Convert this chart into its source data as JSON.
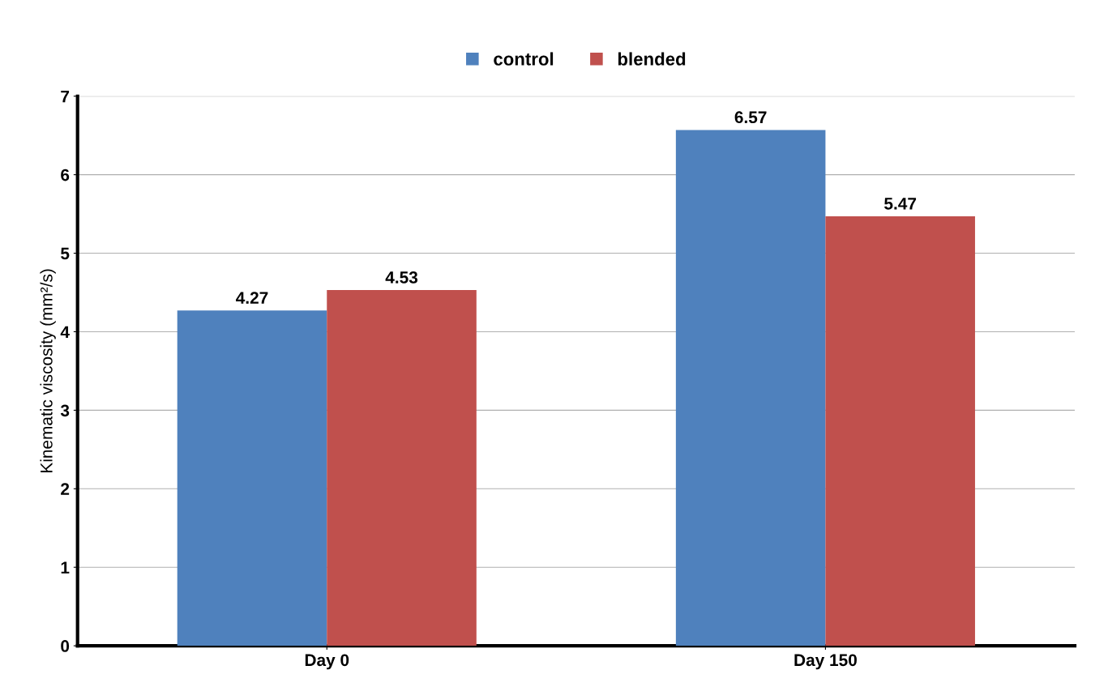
{
  "chart_data": {
    "type": "bar",
    "ylabel": "Kinematic viscosity (mm²/s)",
    "categories": [
      "Day 0",
      "Day 150"
    ],
    "series": [
      {
        "name": "control",
        "color": "#4f81bd",
        "values": [
          4.27,
          6.57
        ]
      },
      {
        "name": "blended",
        "color": "#c0504d",
        "values": [
          4.53,
          5.47
        ]
      }
    ],
    "ylim": [
      0,
      7
    ],
    "yticks": [
      0,
      1,
      2,
      3,
      4,
      5,
      6,
      7
    ],
    "grid": "y",
    "legend": "top",
    "data_labels": true
  }
}
